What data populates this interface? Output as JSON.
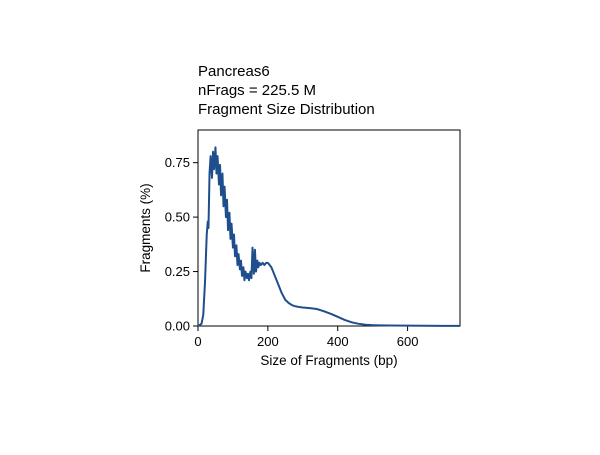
{
  "chart_data": {
    "type": "line",
    "title_lines": [
      "Pancreas6",
      "nFrags = 225.5 M",
      "Fragment Size Distribution"
    ],
    "xlabel": "Size of Fragments (bp)",
    "ylabel": "Fragments (%)",
    "xlim": [
      0,
      750
    ],
    "ylim": [
      0,
      0.9
    ],
    "x_ticks": [
      0,
      200,
      400,
      600
    ],
    "y_ticks": [
      0.0,
      0.25,
      0.5,
      0.75
    ],
    "x_tick_labels": [
      "0",
      "200",
      "400",
      "600"
    ],
    "y_tick_labels": [
      "0.00",
      "0.25",
      "0.50",
      "0.75"
    ],
    "grid": false,
    "line_color": "#1f4e8c",
    "series": [
      {
        "x": [
          0,
          10,
          15,
          20,
          25,
          28,
          30,
          33,
          36,
          40,
          43,
          46,
          50,
          53,
          56,
          60,
          63,
          66,
          70,
          73,
          76,
          80,
          83,
          86,
          90,
          93,
          96,
          100,
          103,
          106,
          110,
          113,
          116,
          120,
          123,
          126,
          130,
          133,
          136,
          140,
          143,
          146,
          150,
          153,
          156,
          160,
          163,
          166,
          170,
          173,
          176,
          180,
          185,
          190,
          195,
          200,
          205,
          210,
          215,
          220,
          230,
          240,
          250,
          260,
          270,
          280,
          290,
          300,
          320,
          340,
          360,
          380,
          400,
          420,
          440,
          460,
          480,
          500,
          520,
          550,
          600,
          650,
          700,
          750
        ],
        "y": [
          0.0,
          0.01,
          0.05,
          0.2,
          0.42,
          0.48,
          0.45,
          0.7,
          0.78,
          0.68,
          0.8,
          0.72,
          0.82,
          0.7,
          0.78,
          0.65,
          0.74,
          0.6,
          0.7,
          0.55,
          0.64,
          0.5,
          0.58,
          0.44,
          0.52,
          0.4,
          0.47,
          0.36,
          0.42,
          0.32,
          0.37,
          0.28,
          0.33,
          0.26,
          0.3,
          0.23,
          0.27,
          0.21,
          0.25,
          0.22,
          0.24,
          0.21,
          0.25,
          0.22,
          0.36,
          0.24,
          0.35,
          0.25,
          0.3,
          0.27,
          0.29,
          0.28,
          0.29,
          0.28,
          0.29,
          0.29,
          0.28,
          0.27,
          0.25,
          0.23,
          0.19,
          0.15,
          0.12,
          0.105,
          0.095,
          0.09,
          0.087,
          0.085,
          0.082,
          0.078,
          0.068,
          0.056,
          0.042,
          0.028,
          0.017,
          0.01,
          0.006,
          0.004,
          0.003,
          0.002,
          0.0015,
          0.001,
          0.0006,
          0.0003
        ]
      }
    ]
  }
}
